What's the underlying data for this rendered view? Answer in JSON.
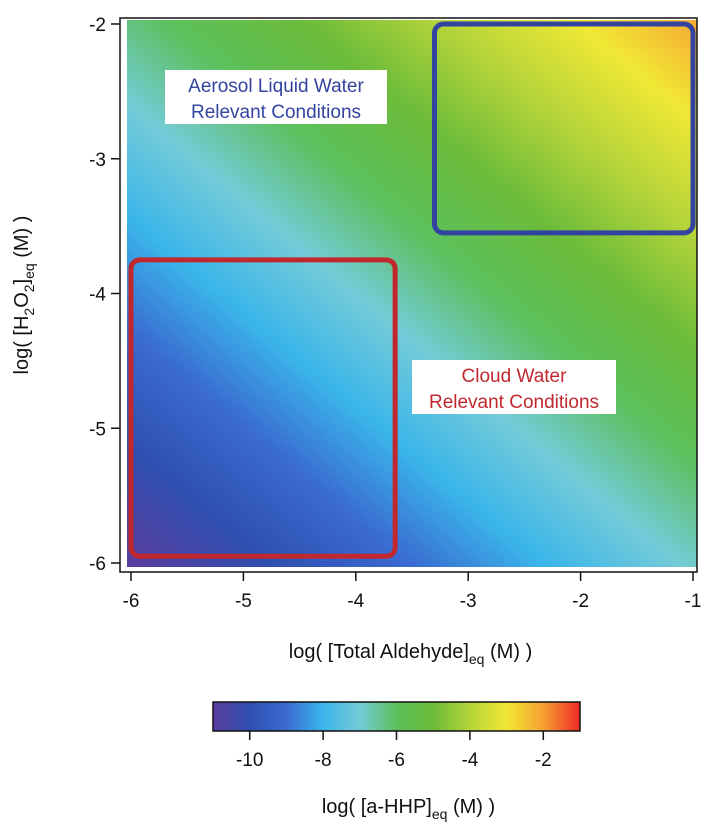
{
  "chart_data": {
    "type": "heatmap",
    "xlabel": {
      "pre": "log( [Total Aldehyde]",
      "sub": "eq",
      "post": " (M) )"
    },
    "ylabel": {
      "pre": "log( [H",
      "sub1": "2",
      "mid1": "O",
      "sub2": "2",
      "mid2": "]",
      "sub3": "eq",
      "post": " (M) )"
    },
    "x_ticks": [
      "-6",
      "-5",
      "-4",
      "-3",
      "-2",
      "-1"
    ],
    "y_ticks": [
      "-2",
      "-3",
      "-4",
      "-5",
      "-6"
    ],
    "xlim": [
      -6,
      -1
    ],
    "ylim": [
      -6,
      -2
    ],
    "model": "z = x + y + 1",
    "colorbar": {
      "label": {
        "pre": "log( [a-HHP]",
        "sub": "eq",
        "post": " (M) )"
      },
      "range": [
        -11,
        -1
      ],
      "ticks": [
        "-10",
        "-8",
        "-6",
        "-4",
        "-2"
      ],
      "colors": [
        "#5a3d9e",
        "#2f4fb0",
        "#3a6ad0",
        "#3ab5ea",
        "#74cbd8",
        "#5cc05c",
        "#6cbc3a",
        "#b5d43a",
        "#f1e835",
        "#f6a033",
        "#ee2a25"
      ]
    },
    "regions": [
      {
        "name": "Aerosol Liquid Water Relevant Conditions",
        "lines": [
          "Aerosol Liquid Water",
          "Relevant Conditions"
        ],
        "x": [
          -3.3,
          -1.0
        ],
        "y": [
          -3.55,
          -2.0
        ],
        "color": "#3344a0"
      },
      {
        "name": "Cloud Water Relevant Conditions",
        "lines": [
          "Cloud Water",
          "Relevant Conditions"
        ],
        "x": [
          -6.0,
          -3.65
        ],
        "y": [
          -5.95,
          -3.75
        ],
        "color": "#c0282e"
      }
    ]
  }
}
